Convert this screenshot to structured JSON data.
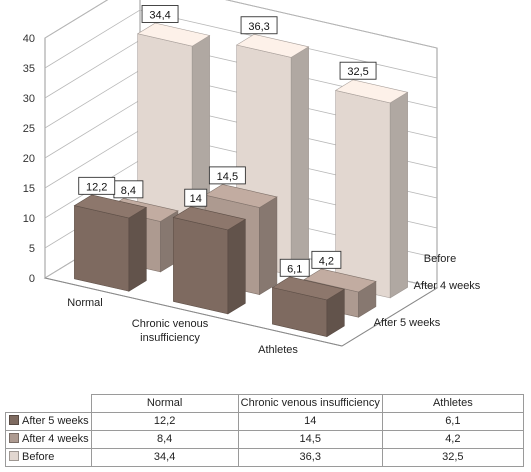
{
  "chart_data": {
    "type": "bar",
    "subtype": "3d-clustered-column-with-data-table",
    "categories": [
      "Normal",
      "Chronic venous insufficiency",
      "Athletes"
    ],
    "category_axis_labels": [
      [
        "Normal"
      ],
      [
        "Chronic venous",
        "insufficiency"
      ],
      [
        "Athletes"
      ]
    ],
    "series": [
      {
        "name": "After 5 weeks",
        "values": [
          12.2,
          14,
          6.1
        ],
        "color": "#7e6a60",
        "labels": [
          "12,2",
          "14",
          "6,1"
        ]
      },
      {
        "name": "After 4 weeks",
        "values": [
          8.4,
          14.5,
          4.2
        ],
        "color": "#ad9a90",
        "labels": [
          "8,4",
          "14,5",
          "4,2"
        ]
      },
      {
        "name": "Before",
        "values": [
          34.4,
          36.3,
          32.5
        ],
        "color": "#e2d7d0",
        "labels": [
          "34,4",
          "36,3",
          "32,5"
        ]
      }
    ],
    "y_ticks": [
      "0",
      "5",
      "10",
      "15",
      "20",
      "25",
      "30",
      "35",
      "40"
    ],
    "ylim": [
      0,
      40
    ],
    "grid": true,
    "legend": "data table below chart",
    "title": "",
    "xlabel": "",
    "ylabel": ""
  },
  "table": {
    "headers": [
      "Normal",
      "Chronic venous insufficiency",
      "Athletes"
    ],
    "rows": [
      {
        "label": "After 5 weeks",
        "cells": [
          "12,2",
          "14",
          "6,1"
        ]
      },
      {
        "label": "After 4 weeks",
        "cells": [
          "8,4",
          "14,5",
          "4,2"
        ]
      },
      {
        "label": "Before",
        "cells": [
          "34,4",
          "36,3",
          "32,5"
        ]
      }
    ]
  }
}
